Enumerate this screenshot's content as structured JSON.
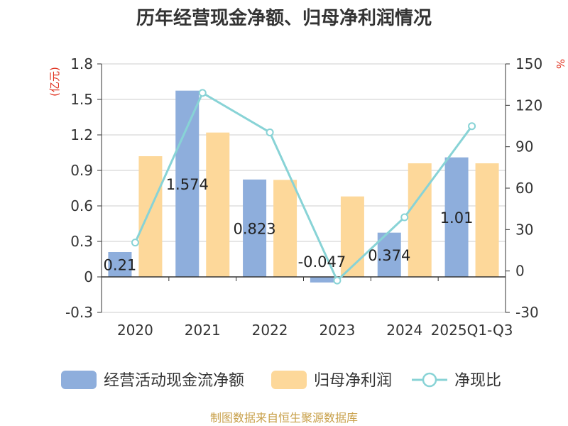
{
  "chart_data": {
    "type": "bar",
    "title": "历年经营现金净额、归母净利润情况",
    "categories": [
      "2020",
      "2021",
      "2022",
      "2023",
      "2024",
      "2025Q1-Q3"
    ],
    "series": [
      {
        "name": "经营活动现金流净额",
        "kind": "bar",
        "axis": "left",
        "color": "#8eaedc",
        "values": [
          0.21,
          1.574,
          0.823,
          -0.047,
          0.374,
          1.01
        ],
        "labels": [
          "0.21",
          "1.574",
          "0.823",
          "-0.047",
          "0.374",
          "1.01"
        ]
      },
      {
        "name": "归母净利润",
        "kind": "bar",
        "axis": "left",
        "color": "#fdd89a",
        "values": [
          1.02,
          1.22,
          0.82,
          0.68,
          0.96,
          0.96
        ]
      },
      {
        "name": "净现比",
        "kind": "line",
        "axis": "right",
        "color": "#88d3d6",
        "values": [
          20.6,
          129,
          100.4,
          -6.9,
          38.9,
          104.9
        ]
      }
    ],
    "y_left": {
      "unit": "(亿元)",
      "min": -0.3,
      "max": 1.8,
      "ticks": [
        "-0.3",
        "0",
        "0.3",
        "0.6",
        "0.9",
        "1.2",
        "1.5",
        "1.8"
      ]
    },
    "y_right": {
      "unit": "%",
      "min": -30,
      "max": 150,
      "ticks": [
        "-30",
        "0",
        "30",
        "60",
        "90",
        "120",
        "150"
      ]
    },
    "grid": true,
    "legend_position": "bottom",
    "source": "制图数据来自恒生聚源数据库"
  }
}
